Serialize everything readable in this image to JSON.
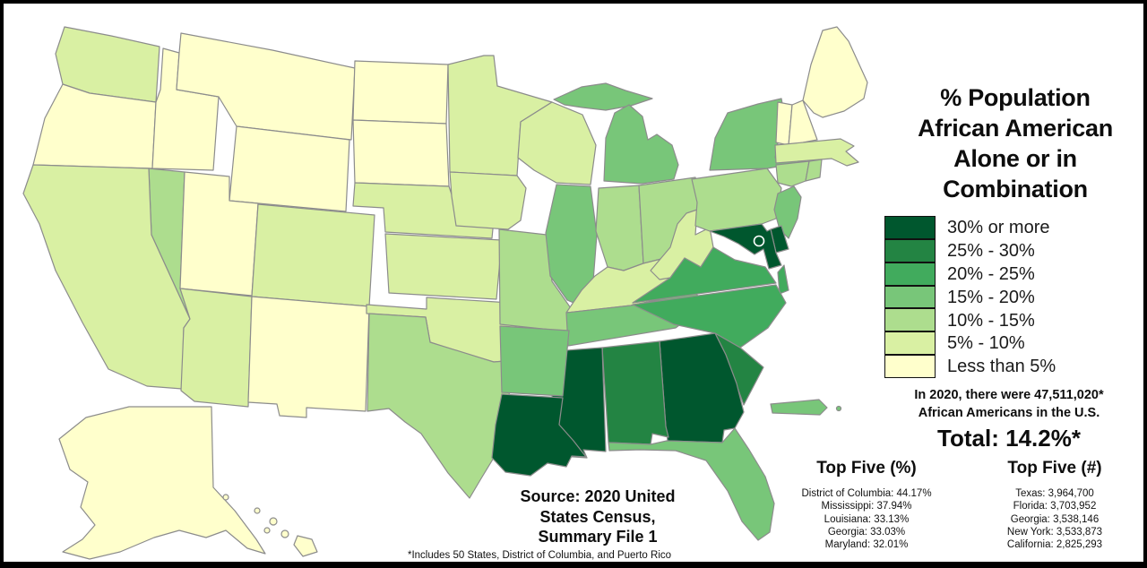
{
  "title": {
    "lines": [
      "% Population",
      "African American",
      "Alone or in",
      "Combination"
    ]
  },
  "legend": {
    "items": [
      {
        "label": "30% or more",
        "color": "#00572e"
      },
      {
        "label": "25% - 30%",
        "color": "#238443"
      },
      {
        "label": "20% - 25%",
        "color": "#41ab5d"
      },
      {
        "label": "15% - 20%",
        "color": "#78c679"
      },
      {
        "label": "10% - 15%",
        "color": "#addd8e"
      },
      {
        "label": "5% - 10%",
        "color": "#d9f0a3"
      },
      {
        "label": "Less than 5%",
        "color": "#ffffcc"
      }
    ]
  },
  "annotation": {
    "lines": [
      "In 2020, there were 47,511,020*",
      "African Americans in the U.S."
    ]
  },
  "total": "Total: 14.2%*",
  "top_five_pct": {
    "title": "Top Five (%)",
    "items": [
      "District of Columbia: 44.17%",
      "Mississippi: 37.94%",
      "Louisiana: 33.13%",
      "Georgia: 33.03%",
      "Maryland: 32.01%"
    ]
  },
  "top_five_count": {
    "title": "Top Five (#)",
    "items": [
      "Texas: 3,964,700",
      "Florida: 3,703,952",
      "Georgia: 3,538,146",
      "New York: 3,533,873",
      "California: 2,825,293"
    ]
  },
  "source": {
    "lines": [
      "Source: 2020 United",
      "States Census,",
      "Summary File 1"
    ]
  },
  "footnote": "*Includes 50 States, District of Columbia, and Puerto Rico",
  "map": {
    "stroke_color": "#8c8c8c",
    "states": [
      {
        "id": "LA",
        "name": "Louisiana",
        "category": "30% or more"
      },
      {
        "id": "MS",
        "name": "Mississippi",
        "category": "30% or more"
      },
      {
        "id": "GA",
        "name": "Georgia",
        "category": "30% or more"
      },
      {
        "id": "MD",
        "name": "Maryland",
        "category": "30% or more"
      },
      {
        "id": "DE",
        "name": "Delaware",
        "category": "30% or more"
      },
      {
        "id": "DC",
        "name": "District of Columbia",
        "category": "30% or more"
      },
      {
        "id": "AL",
        "name": "Alabama",
        "category": "25% - 30%"
      },
      {
        "id": "SC",
        "name": "South Carolina",
        "category": "25% - 30%"
      },
      {
        "id": "VA",
        "name": "Virginia",
        "category": "20% - 25%"
      },
      {
        "id": "NC",
        "name": "North Carolina",
        "category": "20% - 25%"
      },
      {
        "id": "TN",
        "name": "Tennessee",
        "category": "15% - 20%"
      },
      {
        "id": "AR",
        "name": "Arkansas",
        "category": "15% - 20%"
      },
      {
        "id": "FL",
        "name": "Florida",
        "category": "15% - 20%"
      },
      {
        "id": "IL",
        "name": "Illinois",
        "category": "15% - 20%"
      },
      {
        "id": "MI",
        "name": "Michigan",
        "category": "15% - 20%"
      },
      {
        "id": "NY",
        "name": "New York",
        "category": "15% - 20%"
      },
      {
        "id": "NJ",
        "name": "New Jersey",
        "category": "15% - 20%"
      },
      {
        "id": "PR",
        "name": "Puerto Rico",
        "category": "15% - 20%"
      },
      {
        "id": "TX",
        "name": "Texas",
        "category": "10% - 15%"
      },
      {
        "id": "MO",
        "name": "Missouri",
        "category": "10% - 15%"
      },
      {
        "id": "IN",
        "name": "Indiana",
        "category": "10% - 15%"
      },
      {
        "id": "OH",
        "name": "Ohio",
        "category": "10% - 15%"
      },
      {
        "id": "PA",
        "name": "Pennsylvania",
        "category": "10% - 15%"
      },
      {
        "id": "CT",
        "name": "Connecticut",
        "category": "10% - 15%"
      },
      {
        "id": "RI",
        "name": "Rhode Island",
        "category": "10% - 15%"
      },
      {
        "id": "NV",
        "name": "Nevada",
        "category": "10% - 15%"
      },
      {
        "id": "WA",
        "name": "Washington",
        "category": "5% - 10%"
      },
      {
        "id": "CA",
        "name": "California",
        "category": "5% - 10%"
      },
      {
        "id": "AZ",
        "name": "Arizona",
        "category": "5% - 10%"
      },
      {
        "id": "CO",
        "name": "Colorado",
        "category": "5% - 10%"
      },
      {
        "id": "NE",
        "name": "Nebraska",
        "category": "5% - 10%"
      },
      {
        "id": "KS",
        "name": "Kansas",
        "category": "5% - 10%"
      },
      {
        "id": "OK",
        "name": "Oklahoma",
        "category": "5% - 10%"
      },
      {
        "id": "IA",
        "name": "Iowa",
        "category": "5% - 10%"
      },
      {
        "id": "MN",
        "name": "Minnesota",
        "category": "5% - 10%"
      },
      {
        "id": "WI",
        "name": "Wisconsin",
        "category": "5% - 10%"
      },
      {
        "id": "KY",
        "name": "Kentucky",
        "category": "5% - 10%"
      },
      {
        "id": "WV",
        "name": "West Virginia",
        "category": "5% - 10%"
      },
      {
        "id": "MA",
        "name": "Massachusetts",
        "category": "5% - 10%"
      },
      {
        "id": "OR",
        "name": "Oregon",
        "category": "Less than 5%"
      },
      {
        "id": "ID",
        "name": "Idaho",
        "category": "Less than 5%"
      },
      {
        "id": "MT",
        "name": "Montana",
        "category": "Less than 5%"
      },
      {
        "id": "WY",
        "name": "Wyoming",
        "category": "Less than 5%"
      },
      {
        "id": "UT",
        "name": "Utah",
        "category": "Less than 5%"
      },
      {
        "id": "NM",
        "name": "New Mexico",
        "category": "Less than 5%"
      },
      {
        "id": "ND",
        "name": "North Dakota",
        "category": "Less than 5%"
      },
      {
        "id": "SD",
        "name": "South Dakota",
        "category": "Less than 5%"
      },
      {
        "id": "ME",
        "name": "Maine",
        "category": "Less than 5%"
      },
      {
        "id": "VT",
        "name": "Vermont",
        "category": "Less than 5%"
      },
      {
        "id": "NH",
        "name": "New Hampshire",
        "category": "Less than 5%"
      },
      {
        "id": "AK",
        "name": "Alaska",
        "category": "Less than 5%"
      },
      {
        "id": "HI",
        "name": "Hawaii",
        "category": "Less than 5%"
      }
    ]
  }
}
